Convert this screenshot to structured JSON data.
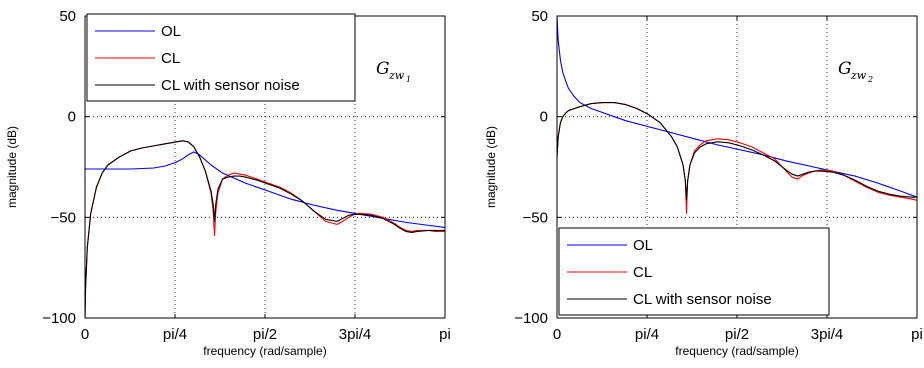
{
  "chart_data": [
    {
      "type": "line",
      "xlabel": "frequency (rad/sample)",
      "ylabel": "magnitude (dB)",
      "xlim": [
        0,
        3.1416
      ],
      "ylim": [
        -100,
        50
      ],
      "xticks": [
        0,
        0.7854,
        1.5708,
        2.3562,
        3.1416
      ],
      "xtick_labels": [
        "0",
        "pi/4",
        "pi/2",
        "3pi/4",
        "pi"
      ],
      "yticks": [
        -100,
        -50,
        0,
        50
      ],
      "ytick_labels": [
        "−100",
        "−50",
        "0",
        "50"
      ],
      "grid": true,
      "legend_position": "top-left",
      "annotation": {
        "main": "G",
        "sub": "zw",
        "subsub": "1"
      },
      "series": [
        {
          "name": "OL",
          "color": "#0000ff",
          "x": [
            0,
            0.2,
            0.4,
            0.6,
            0.7,
            0.8,
            0.85,
            0.9,
            0.95,
            1.0,
            1.1,
            1.2,
            1.4,
            1.6,
            1.8,
            2.0,
            2.2,
            2.4,
            2.6,
            2.8,
            3.0,
            3.14
          ],
          "y": [
            -26,
            -26,
            -26,
            -25.5,
            -24.5,
            -22.5,
            -21,
            -19,
            -17.5,
            -19,
            -24,
            -28,
            -33,
            -37,
            -41,
            -44,
            -46.5,
            -48.5,
            -50.5,
            -52.5,
            -54,
            -55
          ]
        },
        {
          "name": "CL",
          "color": "#ff0000",
          "x": [
            0,
            0.005,
            0.02,
            0.05,
            0.1,
            0.15,
            0.2,
            0.3,
            0.4,
            0.5,
            0.6,
            0.7,
            0.8,
            0.85,
            0.9,
            0.95,
            1.0,
            1.05,
            1.1,
            1.12,
            1.13,
            1.14,
            1.16,
            1.2,
            1.25,
            1.3,
            1.35,
            1.4,
            1.5,
            1.6,
            1.7,
            1.8,
            1.9,
            2.0,
            2.1,
            2.2,
            2.25,
            2.3,
            2.35,
            2.4,
            2.5,
            2.6,
            2.7,
            2.75,
            2.8,
            2.85,
            2.9,
            3.0,
            3.05,
            3.1,
            3.14
          ],
          "y": [
            -100,
            -85,
            -65,
            -48,
            -35,
            -28,
            -24,
            -20,
            -17,
            -15.5,
            -14.5,
            -13.5,
            -12.5,
            -12,
            -12.5,
            -15,
            -20,
            -27,
            -38,
            -48,
            -59,
            -48,
            -38,
            -31,
            -29,
            -28,
            -28.5,
            -29,
            -31,
            -33,
            -35,
            -38,
            -42,
            -47,
            -52,
            -53.5,
            -52,
            -50,
            -48.5,
            -48,
            -48.5,
            -50,
            -53,
            -55,
            -56.5,
            -57,
            -56.5,
            -56.5,
            -57,
            -57,
            -57
          ]
        },
        {
          "name": "CL with sensor noise",
          "color": "#000000",
          "x": [
            0,
            0.005,
            0.02,
            0.05,
            0.1,
            0.15,
            0.2,
            0.3,
            0.4,
            0.5,
            0.6,
            0.7,
            0.8,
            0.85,
            0.9,
            0.95,
            1.0,
            1.05,
            1.1,
            1.12,
            1.13,
            1.14,
            1.16,
            1.2,
            1.25,
            1.3,
            1.35,
            1.4,
            1.5,
            1.6,
            1.7,
            1.8,
            1.9,
            2.0,
            2.1,
            2.2,
            2.25,
            2.3,
            2.35,
            2.4,
            2.5,
            2.6,
            2.7,
            2.75,
            2.8,
            2.85,
            2.9,
            3.0,
            3.05,
            3.1,
            3.14
          ],
          "y": [
            -100,
            -85,
            -65,
            -48,
            -35,
            -28,
            -24,
            -20,
            -17,
            -15.5,
            -14.5,
            -13.5,
            -12.5,
            -12,
            -12.5,
            -15,
            -20,
            -27,
            -37,
            -44,
            -52,
            -44,
            -36,
            -31,
            -30,
            -29.5,
            -29.5,
            -30,
            -31.5,
            -33.5,
            -35.5,
            -38.5,
            -42,
            -47,
            -51,
            -52,
            -50.5,
            -49,
            -48.5,
            -48.5,
            -49,
            -50.5,
            -53.5,
            -55.5,
            -57,
            -57.5,
            -57,
            -56.5,
            -56.5,
            -56.5,
            -56.5
          ]
        }
      ]
    },
    {
      "type": "line",
      "xlabel": "frequency (rad/sample)",
      "ylabel": "magnitude (dB)",
      "xlim": [
        0,
        3.1416
      ],
      "ylim": [
        -100,
        50
      ],
      "xticks": [
        0,
        0.7854,
        1.5708,
        2.3562,
        3.1416
      ],
      "xtick_labels": [
        "0",
        "pi/4",
        "pi/2",
        "3pi/4",
        "pi"
      ],
      "yticks": [
        -100,
        -50,
        0,
        50
      ],
      "ytick_labels": [
        "−100",
        "−50",
        "0",
        "50"
      ],
      "grid": true,
      "legend_position": "bottom-left",
      "annotation": {
        "main": "G",
        "sub": "zw",
        "subsub": "2"
      },
      "series": [
        {
          "name": "OL",
          "color": "#0000ff",
          "x": [
            0,
            0.01,
            0.03,
            0.05,
            0.08,
            0.1,
            0.15,
            0.2,
            0.3,
            0.4,
            0.5,
            0.6,
            0.8,
            1.0,
            1.2,
            1.4,
            1.6,
            1.8,
            2.0,
            2.2,
            2.4,
            2.6,
            2.8,
            3.0,
            3.14
          ],
          "y": [
            50,
            38,
            28,
            22,
            17,
            14,
            10,
            7,
            4,
            2,
            0,
            -2,
            -5,
            -8,
            -11,
            -14,
            -16.5,
            -19,
            -22,
            -24.5,
            -27,
            -29.5,
            -33,
            -37,
            -40
          ]
        },
        {
          "name": "CL",
          "color": "#ff0000",
          "x": [
            0,
            0.01,
            0.03,
            0.05,
            0.08,
            0.1,
            0.15,
            0.2,
            0.3,
            0.4,
            0.5,
            0.6,
            0.7,
            0.8,
            0.9,
            1.0,
            1.05,
            1.1,
            1.12,
            1.13,
            1.14,
            1.16,
            1.2,
            1.25,
            1.3,
            1.4,
            1.5,
            1.6,
            1.7,
            1.8,
            1.9,
            2.0,
            2.05,
            2.1,
            2.15,
            2.2,
            2.25,
            2.3,
            2.4,
            2.5,
            2.6,
            2.7,
            2.8,
            2.9,
            3.0,
            3.1,
            3.14
          ],
          "y": [
            -20,
            -10,
            -3,
            0,
            2,
            3,
            4,
            5,
            6.5,
            7,
            7,
            6,
            4,
            1,
            -3,
            -10,
            -15,
            -24,
            -32,
            -48,
            -32,
            -24,
            -17,
            -14,
            -12,
            -11,
            -11.5,
            -13,
            -15,
            -18,
            -21,
            -27,
            -30,
            -31,
            -29,
            -28,
            -27,
            -26.5,
            -27,
            -29,
            -32,
            -35,
            -37.5,
            -39,
            -40,
            -41,
            -41.5
          ]
        },
        {
          "name": "CL with sensor noise",
          "color": "#000000",
          "x": [
            0,
            0.01,
            0.03,
            0.05,
            0.08,
            0.1,
            0.15,
            0.2,
            0.3,
            0.4,
            0.5,
            0.6,
            0.7,
            0.8,
            0.9,
            1.0,
            1.05,
            1.1,
            1.12,
            1.13,
            1.14,
            1.16,
            1.2,
            1.25,
            1.3,
            1.4,
            1.5,
            1.6,
            1.7,
            1.8,
            1.9,
            2.0,
            2.05,
            2.1,
            2.15,
            2.2,
            2.25,
            2.3,
            2.4,
            2.5,
            2.6,
            2.7,
            2.8,
            2.9,
            3.0,
            3.1,
            3.14
          ],
          "y": [
            -20,
            -10,
            -3,
            0,
            2,
            3,
            4,
            5,
            6.5,
            7,
            7,
            6,
            4,
            1,
            -3,
            -10,
            -15,
            -24,
            -32,
            -41,
            -32,
            -24,
            -18,
            -15,
            -13.5,
            -12.5,
            -13,
            -14.5,
            -16.5,
            -19,
            -22,
            -26.5,
            -28.5,
            -29.5,
            -28.5,
            -27.5,
            -27,
            -27,
            -27.5,
            -29,
            -31.5,
            -34.5,
            -37,
            -38.5,
            -39.5,
            -40,
            -40
          ]
        }
      ]
    }
  ]
}
